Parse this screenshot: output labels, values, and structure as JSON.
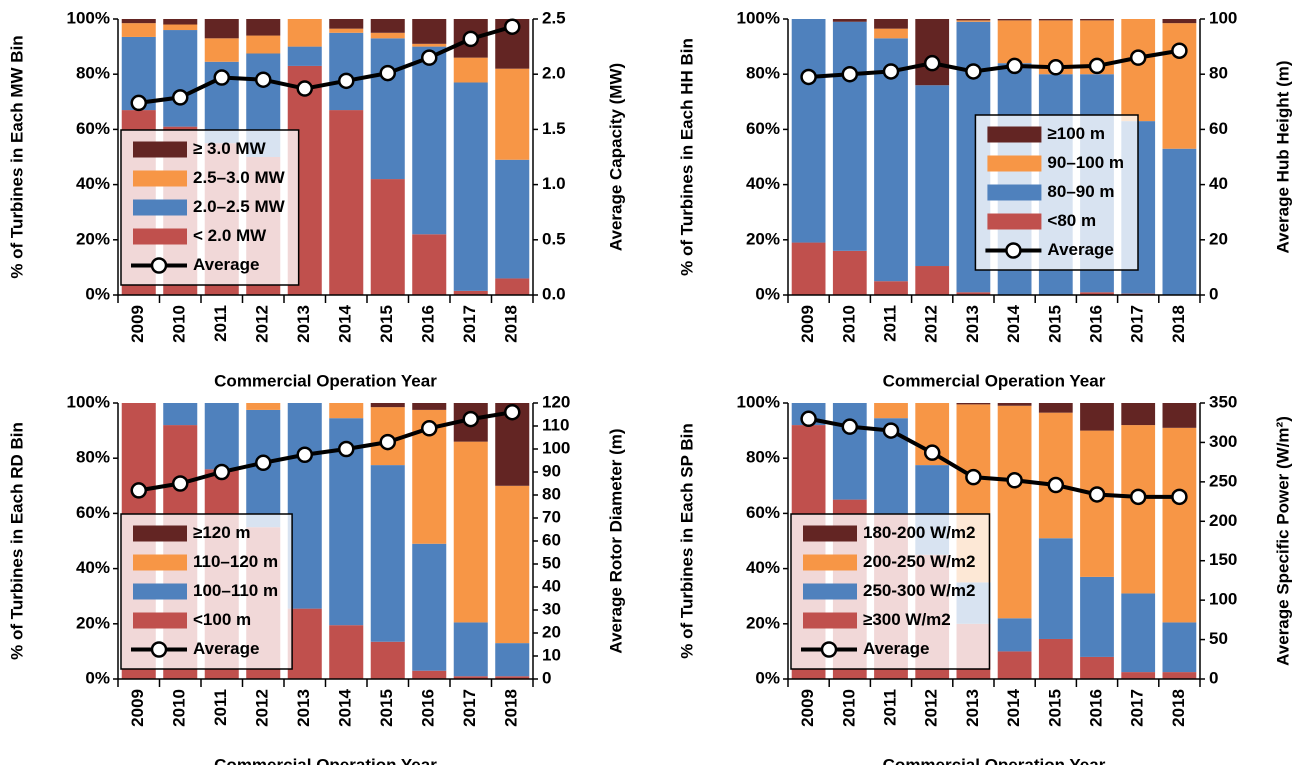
{
  "chart_data": [
    {
      "type": "bar",
      "stacked": true,
      "legend": "lower left",
      "y_label": "% of Turbines in Each MW Bin",
      "y2_label": "Average Capacity (MW)",
      "x_label": "Commercial Operation Year",
      "categories": [
        "2009",
        "2010",
        "2011",
        "2012",
        "2013",
        "2014",
        "2015",
        "2016",
        "2017",
        "2018"
      ],
      "series": [
        {
          "name": "≥ 3.0 MW",
          "color": "#632523",
          "values": [
            1.5,
            2,
            7,
            6,
            0,
            3.5,
            5,
            9,
            14,
            18
          ]
        },
        {
          "name": "2.5–3.0 MW",
          "color": "#f79646",
          "values": [
            5,
            2,
            8.5,
            6.5,
            10,
            1.5,
            2,
            1,
            9,
            33
          ]
        },
        {
          "name": "2.0–2.5 MW",
          "color": "#4f81bd",
          "values": [
            26.5,
            35,
            29.5,
            37.5,
            7,
            28,
            51,
            68,
            75.5,
            43
          ]
        },
        {
          "name": "< 2.0 MW",
          "color": "#c0504d",
          "values": [
            67,
            61,
            55,
            50,
            83,
            67,
            42,
            22,
            1.5,
            6
          ]
        },
        {
          "name": "Average",
          "color": "#000000",
          "axis": "y2",
          "values": [
            1.74,
            1.79,
            1.97,
            1.95,
            1.87,
            1.94,
            2.01,
            2.15,
            2.32,
            2.43
          ]
        }
      ],
      "ylim": [
        0,
        100
      ],
      "yticks": [
        {
          "value": 0,
          "label": "0%"
        },
        {
          "value": 20,
          "label": "20%"
        },
        {
          "value": 40,
          "label": "40%"
        },
        {
          "value": 60,
          "label": "60%"
        },
        {
          "value": 80,
          "label": "80%"
        },
        {
          "value": 100,
          "label": "100%"
        }
      ],
      "y2lim": [
        0,
        2.5
      ],
      "y2ticks": [
        {
          "value": 0,
          "label": "0.0"
        },
        0.5,
        {
          "value": 1,
          "label": "1.0"
        },
        1.5,
        {
          "value": 2,
          "label": "2.0"
        },
        2.5
      ]
    },
    {
      "type": "bar",
      "stacked": true,
      "legend": "lower right",
      "y_label": "% of Turbines in Each HH Bin",
      "y2_label": "Average Hub Height (m)",
      "x_label": "Commercial Operation Year",
      "categories": [
        "2009",
        "2010",
        "2011",
        "2012",
        "2013",
        "2014",
        "2015",
        "2016",
        "2017",
        "2018"
      ],
      "series": [
        {
          "name": "≥100 m",
          "color": "#632523",
          "values": [
            0,
            1,
            3.5,
            24,
            0.5,
            0.5,
            0.5,
            0.5,
            0,
            1.5
          ]
        },
        {
          "name": "90–100 m",
          "color": "#f79646",
          "values": [
            0,
            0,
            3.5,
            0,
            0.5,
            15.5,
            19.5,
            19.5,
            37,
            45.5
          ]
        },
        {
          "name": "80–90 m",
          "color": "#4f81bd",
          "values": [
            81,
            83,
            88,
            65.5,
            98,
            84,
            80,
            79,
            62.5,
            53
          ]
        },
        {
          "name": "<80 m",
          "color": "#c0504d",
          "values": [
            19,
            16,
            5,
            10.5,
            1,
            0,
            0,
            1,
            0.5,
            0
          ]
        },
        {
          "name": "Average",
          "color": "#000000",
          "axis": "y2",
          "values": [
            79,
            80,
            81,
            84,
            81,
            83,
            82.5,
            83,
            86,
            88.5
          ]
        }
      ],
      "ylim": [
        0,
        100
      ],
      "yticks": [
        {
          "value": 0,
          "label": "0%"
        },
        {
          "value": 20,
          "label": "20%"
        },
        {
          "value": 40,
          "label": "40%"
        },
        {
          "value": 60,
          "label": "60%"
        },
        {
          "value": 80,
          "label": "80%"
        },
        {
          "value": 100,
          "label": "100%"
        }
      ],
      "y2lim": [
        0,
        100
      ],
      "y2ticks": [
        0,
        20,
        40,
        60,
        80,
        100
      ]
    },
    {
      "type": "bar",
      "stacked": true,
      "legend": "lower left",
      "y_label": "% of Turbines in Each RD Bin",
      "y2_label": "Average Rotor Diameter (m)",
      "x_label": "Commercial Operation Year",
      "categories": [
        "2009",
        "2010",
        "2011",
        "2012",
        "2013",
        "2014",
        "2015",
        "2016",
        "2017",
        "2018"
      ],
      "series": [
        {
          "name": "≥120 m",
          "color": "#632523",
          "values": [
            0,
            0,
            0,
            0,
            0,
            0,
            1.5,
            2.5,
            14,
            30
          ]
        },
        {
          "name": "110–120 m",
          "color": "#f79646",
          "values": [
            0,
            0,
            0,
            2.5,
            0,
            5.5,
            21,
            48.5,
            65.5,
            57
          ]
        },
        {
          "name": "100–110 m",
          "color": "#4f81bd",
          "values": [
            0,
            8,
            24,
            42.5,
            74.5,
            75,
            64,
            46,
            19.5,
            12
          ]
        },
        {
          "name": "<100 m",
          "color": "#c0504d",
          "values": [
            100,
            92,
            76,
            55,
            25.5,
            19.5,
            13.5,
            3,
            1,
            1
          ]
        },
        {
          "name": "Average",
          "color": "#000000",
          "axis": "y2",
          "values": [
            82,
            85,
            90,
            94,
            97.5,
            100,
            103,
            109,
            113,
            116
          ]
        }
      ],
      "ylim": [
        0,
        100
      ],
      "yticks": [
        {
          "value": 0,
          "label": "0%"
        },
        {
          "value": 20,
          "label": "20%"
        },
        {
          "value": 40,
          "label": "40%"
        },
        {
          "value": 60,
          "label": "60%"
        },
        {
          "value": 80,
          "label": "80%"
        },
        {
          "value": 100,
          "label": "100%"
        }
      ],
      "y2lim": [
        0,
        120
      ],
      "y2ticks": [
        0,
        10,
        20,
        30,
        40,
        50,
        60,
        70,
        80,
        90,
        100,
        110,
        120
      ]
    },
    {
      "type": "bar",
      "stacked": true,
      "legend": "lower left",
      "y_label": "% of Turbines in Each SP Bin",
      "y2_label": "Average Specific Power (W/m²)",
      "x_label": "Commercial Operation Year",
      "categories": [
        "2009",
        "2010",
        "2011",
        "2012",
        "2013",
        "2014",
        "2015",
        "2016",
        "2017",
        "2018"
      ],
      "series": [
        {
          "name": "180-200 W/m2",
          "color": "#632523",
          "values": [
            0,
            0,
            0,
            0,
            0.5,
            1,
            3.5,
            10,
            8,
            9
          ]
        },
        {
          "name": "200-250 W/m2",
          "color": "#f79646",
          "values": [
            0,
            0,
            5.5,
            22.5,
            64.5,
            77,
            45.5,
            53,
            61,
            70.5
          ]
        },
        {
          "name": "250-300 W/m2",
          "color": "#4f81bd",
          "values": [
            8,
            35,
            34.5,
            32.5,
            15,
            12,
            36.5,
            29,
            28.5,
            18
          ]
        },
        {
          "name": "≥300 W/m2",
          "color": "#c0504d",
          "values": [
            92,
            65,
            60,
            45,
            20,
            10,
            14.5,
            8,
            2.5,
            2.5
          ]
        },
        {
          "name": "Average",
          "color": "#000000",
          "axis": "y2",
          "values": [
            330,
            320,
            315,
            287,
            256,
            252,
            246,
            234,
            231,
            231
          ]
        }
      ],
      "ylim": [
        0,
        100
      ],
      "yticks": [
        {
          "value": 0,
          "label": "0%"
        },
        {
          "value": 20,
          "label": "20%"
        },
        {
          "value": 40,
          "label": "40%"
        },
        {
          "value": 60,
          "label": "60%"
        },
        {
          "value": 80,
          "label": "80%"
        },
        {
          "value": 100,
          "label": "100%"
        }
      ],
      "y2lim": [
        0,
        350
      ],
      "y2ticks": [
        0,
        50,
        100,
        150,
        200,
        250,
        300,
        350
      ]
    }
  ]
}
